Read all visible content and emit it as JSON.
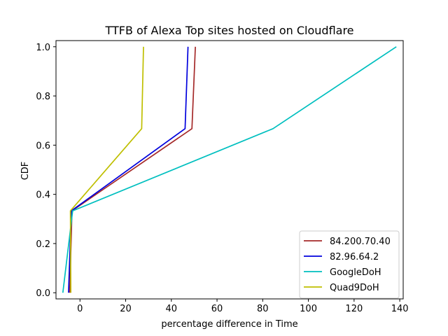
{
  "chart_data": {
    "type": "line",
    "title": "TTFB of Alexa Top sites hosted on Cloudflare",
    "xlabel": "percentage difference in Time",
    "ylabel": "CDF",
    "xlim": [
      -10.5,
      141.5
    ],
    "ylim": [
      -0.025,
      1.025
    ],
    "xticks": [
      0,
      20,
      40,
      60,
      80,
      100,
      120,
      140
    ],
    "xtick_labels": [
      "0",
      "20",
      "40",
      "60",
      "80",
      "100",
      "120",
      "140"
    ],
    "yticks": [
      0.0,
      0.2,
      0.4,
      0.6,
      0.8,
      1.0
    ],
    "ytick_labels": [
      "0.0",
      "0.2",
      "0.4",
      "0.6",
      "0.8",
      "1.0"
    ],
    "grid": false,
    "legend_position": "lower right",
    "series": [
      {
        "name": "84.200.70.40",
        "color": "#a52a2a",
        "x": [
          -4.5,
          -3.5,
          49.0,
          50.5
        ],
        "y": [
          0.0,
          0.333,
          0.667,
          1.0
        ]
      },
      {
        "name": "82.96.64.2",
        "color": "#0000dd",
        "x": [
          -5.0,
          -3.8,
          46.0,
          47.3
        ],
        "y": [
          0.0,
          0.333,
          0.667,
          1.0
        ]
      },
      {
        "name": "GoogleDoH",
        "color": "#00bfbf",
        "x": [
          -7.5,
          -3.2,
          84.5,
          138.5
        ],
        "y": [
          0.0,
          0.333,
          0.667,
          1.0
        ]
      },
      {
        "name": "Quad9DoH",
        "color": "#bfbf00",
        "x": [
          -4.0,
          -4.2,
          27.0,
          27.8
        ],
        "y": [
          0.0,
          0.333,
          0.667,
          1.0
        ]
      }
    ]
  }
}
